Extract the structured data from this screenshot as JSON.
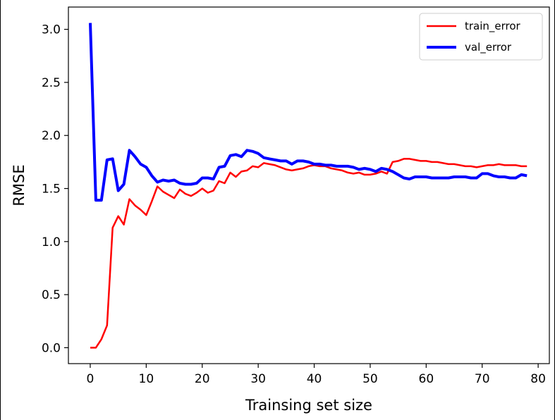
{
  "chart_data": {
    "type": "line",
    "title": "",
    "xlabel": "Trainsing set size",
    "ylabel": "RMSE",
    "xlim": [
      -3.9,
      82.0
    ],
    "ylim": [
      -0.15,
      3.21
    ],
    "xticks": [
      0,
      10,
      20,
      30,
      40,
      50,
      60,
      70,
      80
    ],
    "yticks": [
      0.0,
      0.5,
      1.0,
      1.5,
      2.0,
      2.5,
      3.0
    ],
    "xtick_labels": [
      "0",
      "10",
      "20",
      "30",
      "40",
      "50",
      "60",
      "70",
      "80"
    ],
    "ytick_labels": [
      "0.0",
      "0.5",
      "1.0",
      "1.5",
      "2.0",
      "2.5",
      "3.0"
    ],
    "grid": false,
    "legend": "top-right",
    "series": [
      {
        "name": "train_error",
        "color": "#ff0000",
        "x": [
          0,
          1,
          2,
          3,
          4,
          5,
          6,
          7,
          8,
          9,
          10,
          11,
          12,
          13,
          14,
          15,
          16,
          17,
          18,
          19,
          20,
          21,
          22,
          23,
          24,
          25,
          26,
          27,
          28,
          29,
          30,
          31,
          32,
          33,
          34,
          35,
          36,
          37,
          38,
          39,
          40,
          41,
          42,
          43,
          44,
          45,
          46,
          47,
          48,
          49,
          50,
          51,
          52,
          53,
          54,
          55,
          56,
          57,
          58,
          59,
          60,
          61,
          62,
          63,
          64,
          65,
          66,
          67,
          68,
          69,
          70,
          71,
          72,
          73,
          74,
          75,
          76,
          77,
          78
        ],
        "values": [
          0.0,
          0.0,
          0.08,
          0.21,
          1.13,
          1.24,
          1.16,
          1.4,
          1.34,
          1.3,
          1.25,
          1.38,
          1.52,
          1.47,
          1.44,
          1.41,
          1.49,
          1.45,
          1.43,
          1.46,
          1.5,
          1.46,
          1.48,
          1.57,
          1.55,
          1.65,
          1.61,
          1.66,
          1.67,
          1.71,
          1.7,
          1.74,
          1.73,
          1.72,
          1.7,
          1.68,
          1.67,
          1.68,
          1.69,
          1.71,
          1.72,
          1.71,
          1.71,
          1.69,
          1.68,
          1.67,
          1.65,
          1.64,
          1.65,
          1.63,
          1.63,
          1.64,
          1.66,
          1.64,
          1.75,
          1.76,
          1.78,
          1.78,
          1.77,
          1.76,
          1.76,
          1.75,
          1.75,
          1.74,
          1.73,
          1.73,
          1.72,
          1.71,
          1.71,
          1.7,
          1.71,
          1.72,
          1.72,
          1.73,
          1.72,
          1.72,
          1.72,
          1.71,
          1.71
        ]
      },
      {
        "name": "val_error",
        "color": "#0000ff",
        "x": [
          0,
          1,
          2,
          3,
          4,
          5,
          6,
          7,
          8,
          9,
          10,
          11,
          12,
          13,
          14,
          15,
          16,
          17,
          18,
          19,
          20,
          21,
          22,
          23,
          24,
          25,
          26,
          27,
          28,
          29,
          30,
          31,
          32,
          33,
          34,
          35,
          36,
          37,
          38,
          39,
          40,
          41,
          42,
          43,
          44,
          45,
          46,
          47,
          48,
          49,
          50,
          51,
          52,
          53,
          54,
          55,
          56,
          57,
          58,
          59,
          60,
          61,
          62,
          63,
          64,
          65,
          66,
          67,
          68,
          69,
          70,
          71,
          72,
          73,
          74,
          75,
          76,
          77,
          78
        ],
        "values": [
          3.06,
          1.39,
          1.39,
          1.77,
          1.78,
          1.48,
          1.54,
          1.86,
          1.8,
          1.73,
          1.7,
          1.62,
          1.56,
          1.58,
          1.57,
          1.58,
          1.55,
          1.54,
          1.54,
          1.55,
          1.6,
          1.6,
          1.59,
          1.7,
          1.71,
          1.81,
          1.82,
          1.8,
          1.86,
          1.85,
          1.83,
          1.79,
          1.78,
          1.77,
          1.76,
          1.76,
          1.73,
          1.76,
          1.76,
          1.75,
          1.73,
          1.73,
          1.72,
          1.72,
          1.71,
          1.71,
          1.71,
          1.7,
          1.68,
          1.69,
          1.68,
          1.66,
          1.69,
          1.68,
          1.66,
          1.63,
          1.6,
          1.59,
          1.61,
          1.61,
          1.61,
          1.6,
          1.6,
          1.6,
          1.6,
          1.61,
          1.61,
          1.61,
          1.6,
          1.6,
          1.64,
          1.64,
          1.62,
          1.61,
          1.61,
          1.6,
          1.6,
          1.63,
          1.62
        ]
      }
    ]
  }
}
